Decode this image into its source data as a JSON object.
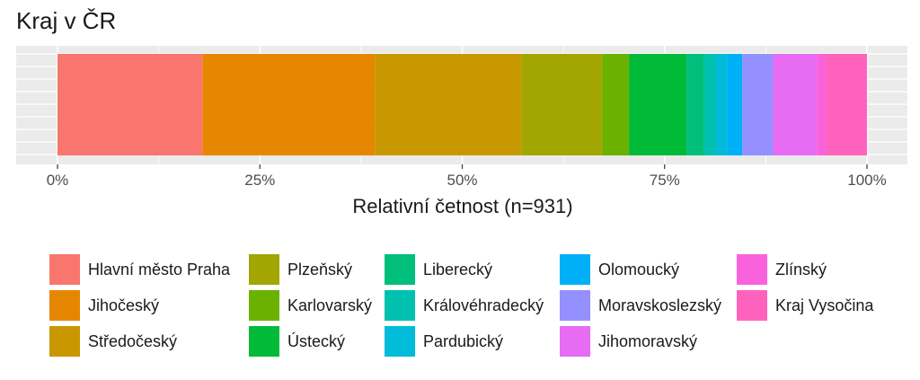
{
  "chart_data": {
    "type": "bar",
    "orientation": "horizontal-stacked-100",
    "title": "Kraj v ČR",
    "xlabel": "Relativní četnost (n=931)",
    "ylabel": "",
    "xlim": [
      0,
      100
    ],
    "x_ticks": [
      "0%",
      "25%",
      "50%",
      "75%",
      "100%"
    ],
    "grid": true,
    "legend_position": "bottom",
    "series": [
      {
        "name": "Hlavní město Praha",
        "value": 17.9,
        "color": "#F8766D"
      },
      {
        "name": "Jihočeský",
        "value": 21.3,
        "color": "#E58700"
      },
      {
        "name": "Středočeský",
        "value": 18.1,
        "color": "#C99800"
      },
      {
        "name": "Plzeňský",
        "value": 10.0,
        "color": "#A3A500"
      },
      {
        "name": "Karlovarský",
        "value": 3.3,
        "color": "#6BB100"
      },
      {
        "name": "Ústecký",
        "value": 7.1,
        "color": "#00BA38"
      },
      {
        "name": "Liberecký",
        "value": 2.2,
        "color": "#00BF7D"
      },
      {
        "name": "Královéhradecký",
        "value": 1.4,
        "color": "#00C0AF"
      },
      {
        "name": "Pardubický",
        "value": 1.4,
        "color": "#00BCD8"
      },
      {
        "name": "Olomoucký",
        "value": 1.9,
        "color": "#00B0F6"
      },
      {
        "name": "Moravskoslezský",
        "value": 3.8,
        "color": "#9590FF"
      },
      {
        "name": "Jihomoravský",
        "value": 5.4,
        "color": "#E76BF3"
      },
      {
        "name": "Zlínský",
        "value": 1.1,
        "color": "#FA62DB"
      },
      {
        "name": "Kraj Vysočina",
        "value": 5.1,
        "color": "#FF62BC"
      }
    ]
  }
}
